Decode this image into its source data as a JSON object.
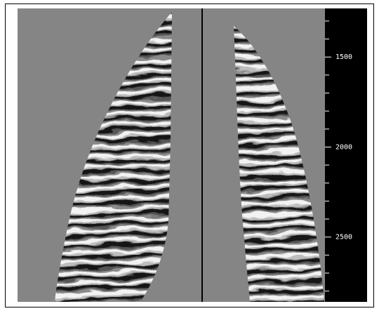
{
  "axis": {
    "ylim": [
      1230,
      2860
    ],
    "yticks": [
      1500,
      2000,
      2500
    ],
    "minor_yticks": [
      1300,
      1400,
      1600,
      1700,
      1800,
      1900,
      2100,
      2200,
      2300,
      2400,
      2600,
      2700,
      2800
    ]
  }
}
